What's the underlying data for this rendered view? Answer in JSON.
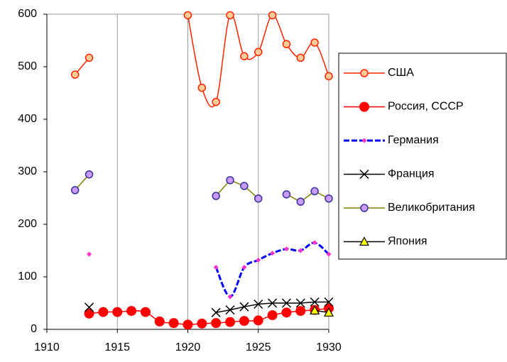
{
  "chart_data": {
    "type": "line",
    "x": [
      1912,
      1913,
      1914,
      1915,
      1916,
      1917,
      1918,
      1919,
      1920,
      1921,
      1922,
      1923,
      1924,
      1925,
      1926,
      1927,
      1928,
      1929,
      1930
    ],
    "series": [
      {
        "name": "США",
        "color": "#ff2200",
        "marker": "circle",
        "marker_fill": "#ffcc99",
        "smooth": true,
        "values": [
          485,
          517,
          null,
          null,
          null,
          null,
          null,
          null,
          598,
          460,
          433,
          598,
          520,
          528,
          598,
          543,
          517,
          546,
          482
        ]
      },
      {
        "name": "Россия, СССР",
        "color": "#ff0000",
        "marker": "dot",
        "marker_fill": "#ff0000",
        "smooth": true,
        "values": [
          null,
          30,
          33,
          33,
          35,
          33,
          15,
          12,
          9,
          11,
          12,
          14,
          16,
          17,
          27,
          32,
          35,
          37,
          40
        ]
      },
      {
        "name": "Германия",
        "color": "#0000ff",
        "marker": "diamond",
        "marker_fill": "#ff33cc",
        "smooth": true,
        "dashed": true,
        "values": [
          null,
          143,
          null,
          null,
          null,
          null,
          null,
          null,
          null,
          null,
          118,
          62,
          118,
          132,
          145,
          153,
          150,
          165,
          143
        ]
      },
      {
        "name": "Франция",
        "color": "#000000",
        "marker": "x",
        "marker_fill": "#000000",
        "smooth": false,
        "values": [
          null,
          42,
          null,
          null,
          null,
          null,
          null,
          null,
          null,
          null,
          32,
          37,
          43,
          48,
          50,
          50,
          50,
          52,
          52
        ]
      },
      {
        "name": "Великобритания",
        "color": "#808000",
        "marker": "circle",
        "marker_fill": "#cc99ff",
        "marker_stroke": "#333399",
        "smooth": false,
        "values": [
          265,
          295,
          null,
          null,
          null,
          null,
          null,
          null,
          null,
          null,
          254,
          284,
          273,
          249,
          null,
          257,
          243,
          263,
          249
        ]
      },
      {
        "name": "Япония",
        "color": "#000000",
        "marker": "triangle",
        "marker_fill": "#ffff00",
        "smooth": false,
        "values": [
          null,
          null,
          null,
          null,
          null,
          null,
          null,
          null,
          null,
          null,
          null,
          null,
          null,
          null,
          null,
          null,
          null,
          36,
          32
        ]
      }
    ],
    "xlim": [
      1910,
      1930
    ],
    "xticks": [
      1910,
      1915,
      1920,
      1925,
      1930
    ],
    "ylim": [
      0,
      600
    ],
    "yticks": [
      0,
      100,
      200,
      300,
      400,
      500,
      600
    ],
    "grid": "x",
    "legend": "right"
  }
}
